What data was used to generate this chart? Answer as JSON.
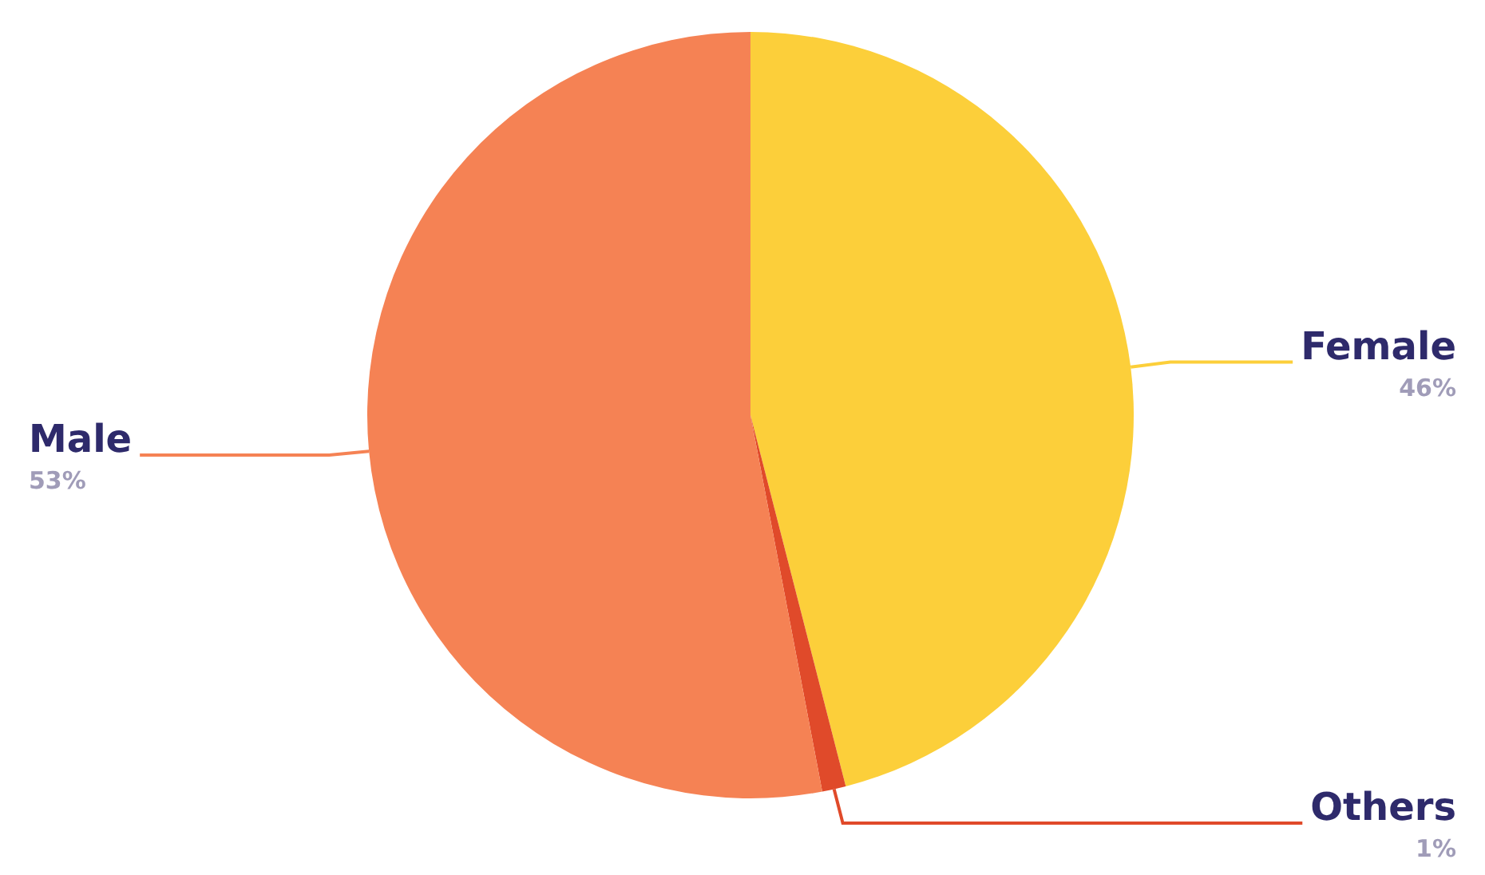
{
  "chart_data": {
    "type": "pie",
    "categories": [
      "Female",
      "Others",
      "Male"
    ],
    "values": [
      46,
      1,
      53
    ],
    "value_labels": [
      "46%",
      "1%",
      "53%"
    ],
    "colors": [
      "#fccf3a",
      "#e04a2a",
      "#f58254"
    ],
    "legend": false
  }
}
